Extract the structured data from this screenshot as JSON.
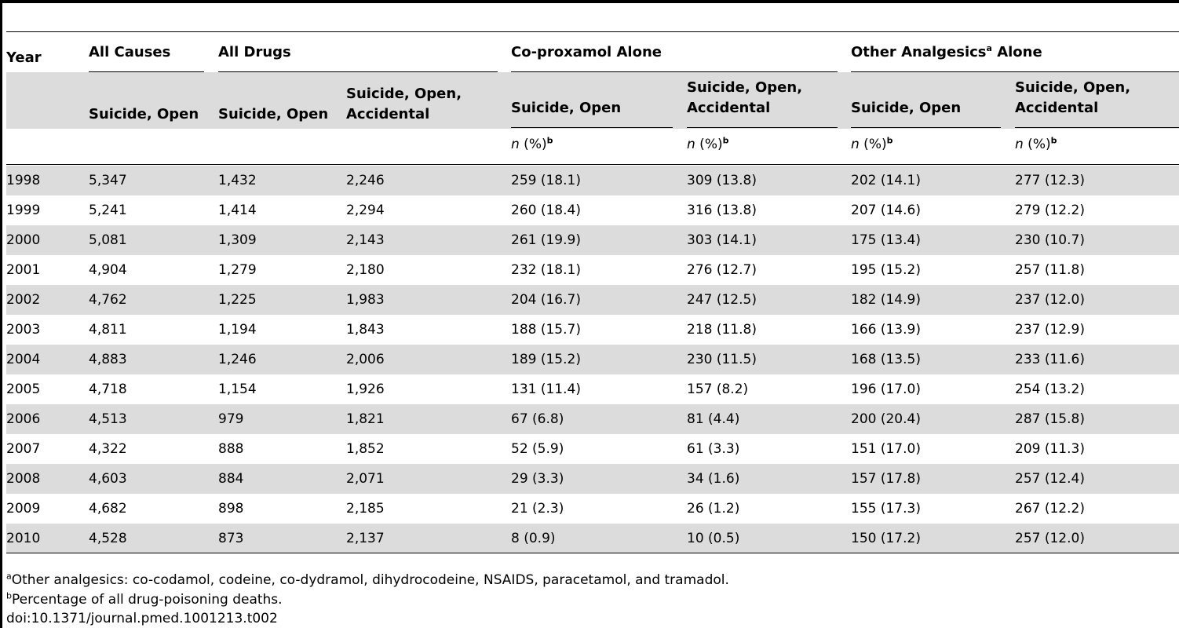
{
  "table": {
    "headers": {
      "year": "Year",
      "all_causes": "All Causes",
      "all_drugs": "All Drugs",
      "coproxamol": "Co-proxamol Alone",
      "other_analgesics_main": "Other Analgesics",
      "other_analgesics_sup": "a",
      "other_analgesics_tail": " Alone"
    },
    "subheaders": {
      "all_causes_so": "Suicide, Open",
      "all_drugs_so": "Suicide, Open",
      "all_drugs_soa_1": "Suicide, Open,",
      "all_drugs_soa_2": "Accidental",
      "cp_so": "Suicide, Open",
      "cp_soa_1": "Suicide, Open,",
      "cp_soa_2": "Accidental",
      "oa_so": "Suicide, Open",
      "oa_soa_1": "Suicide, Open,",
      "oa_soa_2": "Accidental"
    },
    "units": {
      "n": "n",
      "pct": " (%)",
      "sup": "b"
    },
    "rows": [
      [
        "1998",
        "5,347",
        "1,432",
        "2,246",
        "259 (18.1)",
        "309 (13.8)",
        "202 (14.1)",
        "277 (12.3)"
      ],
      [
        "1999",
        "5,241",
        "1,414",
        "2,294",
        "260 (18.4)",
        "316 (13.8)",
        "207 (14.6)",
        "279 (12.2)"
      ],
      [
        "2000",
        "5,081",
        "1,309",
        "2,143",
        "261 (19.9)",
        "303 (14.1)",
        "175 (13.4)",
        "230 (10.7)"
      ],
      [
        "2001",
        "4,904",
        "1,279",
        "2,180",
        "232 (18.1)",
        "276 (12.7)",
        "195 (15.2)",
        "257 (11.8)"
      ],
      [
        "2002",
        "4,762",
        "1,225",
        "1,983",
        "204 (16.7)",
        "247 (12.5)",
        "182 (14.9)",
        "237 (12.0)"
      ],
      [
        "2003",
        "4,811",
        "1,194",
        "1,843",
        "188 (15.7)",
        "218 (11.8)",
        "166 (13.9)",
        "237 (12.9)"
      ],
      [
        "2004",
        "4,883",
        "1,246",
        "2,006",
        "189 (15.2)",
        "230 (11.5)",
        "168 (13.5)",
        "233 (11.6)"
      ],
      [
        "2005",
        "4,718",
        "1,154",
        "1,926",
        "131 (11.4)",
        "157 (8.2)",
        "196 (17.0)",
        "254 (13.2)"
      ],
      [
        "2006",
        "4,513",
        "979",
        "1,821",
        "67 (6.8)",
        "81 (4.4)",
        "200 (20.4)",
        "287 (15.8)"
      ],
      [
        "2007",
        "4,322",
        "888",
        "1,852",
        "52 (5.9)",
        "61 (3.3)",
        "151 (17.0)",
        "209 (11.3)"
      ],
      [
        "2008",
        "4,603",
        "884",
        "2,071",
        "29 (3.3)",
        "34 (1.6)",
        "157 (17.8)",
        "257 (12.4)"
      ],
      [
        "2009",
        "4,682",
        "898",
        "2,185",
        "21 (2.3)",
        "26 (1.2)",
        "155 (17.3)",
        "267 (12.2)"
      ],
      [
        "2010",
        "4,528",
        "873",
        "2,137",
        "8 (0.9)",
        "10 (0.5)",
        "150 (17.2)",
        "257 (12.0)"
      ]
    ]
  },
  "footnotes": {
    "a_sup": "a",
    "a_text": "Other analgesics: co-codamol, codeine, co-dydramol, dihydrocodeine, NSAIDS, paracetamol, and tramadol.",
    "b_sup": "b",
    "b_text": "Percentage of all drug-poisoning deaths.",
    "doi": "doi:10.1371/journal.pmed.1001213.t002"
  }
}
